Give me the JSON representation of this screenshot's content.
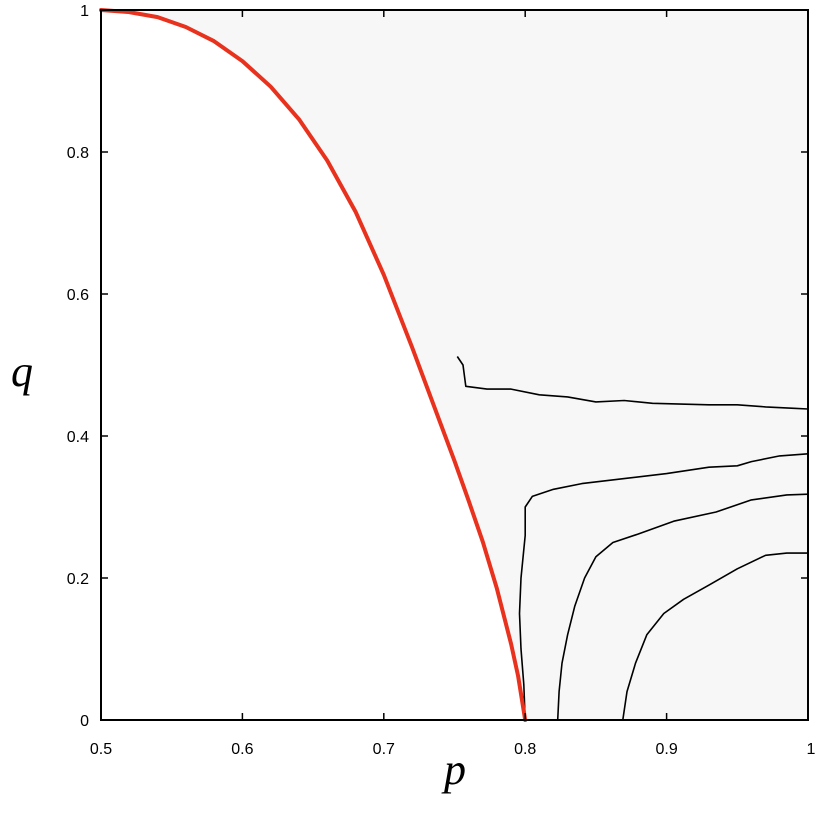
{
  "chart_data": {
    "type": "heatmap",
    "title": "",
    "xlabel": "p",
    "ylabel": "q",
    "xlim": [
      0.5,
      1.0
    ],
    "ylim": [
      0.0,
      1.0
    ],
    "xticks": [
      {
        "value": 0.5,
        "label": "0.5"
      },
      {
        "value": 0.6,
        "label": "0.6"
      },
      {
        "value": 0.7,
        "label": "0.7"
      },
      {
        "value": 0.8,
        "label": "0.8"
      },
      {
        "value": 0.9,
        "label": "0.9"
      },
      {
        "value": 1.0,
        "label": "1"
      }
    ],
    "yticks": [
      {
        "value": 0.0,
        "label": "0"
      },
      {
        "value": 0.2,
        "label": "0.2"
      },
      {
        "value": 0.4,
        "label": "0.4"
      },
      {
        "value": 0.6,
        "label": "0.6"
      },
      {
        "value": 0.8,
        "label": "0.8"
      },
      {
        "value": 1.0,
        "label": "1"
      }
    ],
    "grid": false,
    "colormap": "white-to-black grayscale (darker = higher value)",
    "colors": {
      "boundary_curve": "#e8321e",
      "contour": "#000000",
      "frame": "#000000"
    },
    "boundary_curve": {
      "points": [
        [
          0.5,
          1.0
        ],
        [
          0.52,
          0.997
        ],
        [
          0.54,
          0.99
        ],
        [
          0.56,
          0.976
        ],
        [
          0.58,
          0.956
        ],
        [
          0.6,
          0.928
        ],
        [
          0.62,
          0.892
        ],
        [
          0.64,
          0.846
        ],
        [
          0.66,
          0.788
        ],
        [
          0.68,
          0.716
        ],
        [
          0.7,
          0.627
        ],
        [
          0.72,
          0.525
        ],
        [
          0.74,
          0.418
        ],
        [
          0.75,
          0.365
        ],
        [
          0.76,
          0.309
        ],
        [
          0.77,
          0.251
        ],
        [
          0.78,
          0.185
        ],
        [
          0.79,
          0.107
        ],
        [
          0.795,
          0.062
        ],
        [
          0.8,
          0.0
        ]
      ]
    },
    "contours": [
      {
        "level": 1,
        "points": [
          [
            0.752,
            0.512
          ],
          [
            0.756,
            0.5
          ],
          [
            0.758,
            0.47
          ],
          [
            0.773,
            0.466
          ],
          [
            0.79,
            0.466
          ],
          [
            0.81,
            0.458
          ],
          [
            0.83,
            0.455
          ],
          [
            0.85,
            0.448
          ],
          [
            0.87,
            0.45
          ],
          [
            0.89,
            0.446
          ],
          [
            0.91,
            0.445
          ],
          [
            0.93,
            0.444
          ],
          [
            0.95,
            0.444
          ],
          [
            0.97,
            0.441
          ],
          [
            0.99,
            0.439
          ],
          [
            1.0,
            0.438
          ]
        ]
      },
      {
        "level": 2,
        "points": [
          [
            0.8,
            0.0
          ],
          [
            0.799,
            0.05
          ],
          [
            0.797,
            0.1
          ],
          [
            0.796,
            0.15
          ],
          [
            0.797,
            0.2
          ],
          [
            0.8,
            0.26
          ],
          [
            0.8,
            0.3
          ],
          [
            0.805,
            0.315
          ],
          [
            0.82,
            0.325
          ],
          [
            0.84,
            0.333
          ],
          [
            0.87,
            0.34
          ],
          [
            0.9,
            0.347
          ],
          [
            0.93,
            0.356
          ],
          [
            0.95,
            0.358
          ],
          [
            0.96,
            0.364
          ],
          [
            0.98,
            0.372
          ],
          [
            1.0,
            0.375
          ]
        ]
      },
      {
        "level": 3,
        "points": [
          [
            0.823,
            0.0
          ],
          [
            0.824,
            0.04
          ],
          [
            0.826,
            0.08
          ],
          [
            0.83,
            0.12
          ],
          [
            0.835,
            0.16
          ],
          [
            0.842,
            0.2
          ],
          [
            0.85,
            0.23
          ],
          [
            0.862,
            0.25
          ],
          [
            0.88,
            0.262
          ],
          [
            0.905,
            0.28
          ],
          [
            0.935,
            0.293
          ],
          [
            0.96,
            0.31
          ],
          [
            0.985,
            0.317
          ],
          [
            1.0,
            0.318
          ]
        ]
      },
      {
        "level": 4,
        "points": [
          [
            0.869,
            0.0
          ],
          [
            0.872,
            0.04
          ],
          [
            0.878,
            0.08
          ],
          [
            0.886,
            0.12
          ],
          [
            0.898,
            0.15
          ],
          [
            0.912,
            0.17
          ],
          [
            0.93,
            0.19
          ],
          [
            0.95,
            0.213
          ],
          [
            0.97,
            0.232
          ],
          [
            0.985,
            0.235
          ],
          [
            1.0,
            0.235
          ]
        ]
      }
    ]
  }
}
